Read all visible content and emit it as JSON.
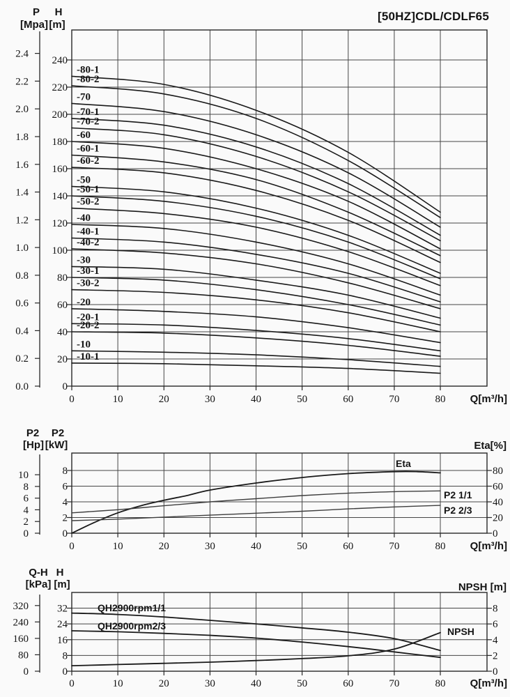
{
  "title": "[50HZ]CDL/CDLF65",
  "colors": {
    "curve": "#191919",
    "grid": "#454545",
    "frame": "#262626",
    "power_curve": "#3d3d3d"
  },
  "chart_data": [
    {
      "type": "line",
      "name": "Q-H stage performance curves",
      "axes": {
        "left_outer": {
          "title": "P",
          "unit": "[Mpa]",
          "ticks": [
            "2.4",
            "2.2",
            "2.0",
            "1.8",
            "1.6",
            "1.4",
            "1.2",
            "1.0",
            "0.8",
            "0.6",
            "0.4",
            "0.2",
            "0.0"
          ]
        },
        "left_inner": {
          "title": "H",
          "unit": "[m]",
          "ticks": [
            240,
            220,
            200,
            180,
            160,
            140,
            120,
            100,
            80,
            60,
            40,
            20,
            0
          ]
        },
        "x": {
          "label": "Q[m³/h]",
          "ticks": [
            0,
            10,
            20,
            30,
            40,
            50,
            60,
            70,
            80
          ],
          "max": 90
        }
      },
      "x_values": [
        0,
        20,
        40,
        60,
        80
      ],
      "series": [
        {
          "label": "-80-1",
          "values": [
            228,
            222,
            203,
            172,
            128
          ]
        },
        {
          "label": "-80-2",
          "values": [
            221,
            215,
            197,
            166,
            124
          ]
        },
        {
          "label": "-70",
          "values": [
            208,
            202,
            185,
            157,
            117
          ]
        },
        {
          "label": "-70-1",
          "values": [
            197,
            192,
            176,
            149,
            111
          ]
        },
        {
          "label": "-70-2",
          "values": [
            190,
            185,
            169,
            143,
            107
          ]
        },
        {
          "label": "-60",
          "values": [
            180,
            175,
            160,
            136,
            101
          ]
        },
        {
          "label": "-60-1",
          "values": [
            170,
            165,
            152,
            128,
            96
          ]
        },
        {
          "label": "-60-2",
          "values": [
            161,
            157,
            144,
            122,
            91
          ]
        },
        {
          "label": "-50",
          "values": [
            147,
            143,
            131,
            111,
            83
          ]
        },
        {
          "label": "-50-1",
          "values": [
            140,
            136,
            125,
            106,
            79
          ]
        },
        {
          "label": "-50-2",
          "values": [
            131,
            127,
            117,
            99,
            74
          ]
        },
        {
          "label": "-40",
          "values": [
            119,
            116,
            106,
            90,
            67
          ]
        },
        {
          "label": "-40-1",
          "values": [
            109,
            106,
            97,
            83,
            62
          ]
        },
        {
          "label": "-40-2",
          "values": [
            101,
            98,
            90,
            76,
            57
          ]
        },
        {
          "label": "-30",
          "values": [
            88,
            86,
            78,
            67,
            50
          ]
        },
        {
          "label": "-30-1",
          "values": [
            80,
            78,
            71,
            60,
            45
          ]
        },
        {
          "label": "-30-2",
          "values": [
            71,
            69,
            63.5,
            54,
            40
          ]
        },
        {
          "label": "-20",
          "values": [
            57,
            55,
            51,
            43,
            32
          ]
        },
        {
          "label": "-20-1",
          "values": [
            46,
            45,
            41,
            35,
            26
          ]
        },
        {
          "label": "-20-2",
          "values": [
            40,
            39,
            35.5,
            30,
            22
          ]
        },
        {
          "label": "-10",
          "values": [
            26,
            25,
            23,
            19.5,
            14.5
          ]
        },
        {
          "label": "-10-1",
          "values": [
            17,
            16.5,
            15,
            13,
            9.5
          ]
        }
      ]
    },
    {
      "type": "line",
      "name": "shaft power and efficiency curves",
      "axes": {
        "left_outer": {
          "title": "P2",
          "unit": "[Hp]",
          "ticks": [
            10,
            8,
            6,
            4,
            2,
            0
          ]
        },
        "left_inner": {
          "title": "P2",
          "unit": "[kW]",
          "ticks": [
            8,
            6,
            4,
            2,
            0
          ]
        },
        "right": {
          "label": "Eta[%]",
          "ticks": [
            80,
            60,
            40,
            20,
            0
          ]
        },
        "x": {
          "label": "Q[m³/h]",
          "ticks": [
            0,
            10,
            20,
            30,
            40,
            50,
            60,
            70,
            80
          ],
          "max": 90
        }
      },
      "series": [
        {
          "label": "Eta",
          "unit": "%",
          "x": [
            0,
            5,
            10,
            15,
            20,
            25,
            30,
            40,
            50,
            60,
            70,
            75,
            80
          ],
          "values": [
            0,
            14,
            26,
            35,
            42,
            48,
            55,
            64,
            71,
            76,
            78.5,
            78.5,
            77
          ]
        },
        {
          "label": "P2 1/1",
          "unit": "kW",
          "x": [
            0,
            10,
            20,
            30,
            40,
            50,
            60,
            70,
            80
          ],
          "values": [
            2.6,
            3.0,
            3.5,
            4.0,
            4.4,
            4.8,
            5.1,
            5.3,
            5.4
          ]
        },
        {
          "label": "P2 2/3",
          "unit": "kW",
          "x": [
            0,
            10,
            20,
            30,
            40,
            50,
            60,
            70,
            80
          ],
          "values": [
            1.6,
            1.8,
            2.05,
            2.3,
            2.55,
            2.8,
            3.1,
            3.35,
            3.55
          ]
        }
      ]
    },
    {
      "type": "line",
      "name": "QH at 2900rpm and NPSH curves",
      "axes": {
        "left_outer": {
          "title": "Q-H",
          "unit": "[kPa]",
          "ticks": [
            320,
            240,
            160,
            80,
            0
          ]
        },
        "left_inner": {
          "title": "H",
          "unit": "[m]",
          "ticks": [
            32,
            24,
            16,
            8,
            0
          ]
        },
        "right": {
          "label": "NPSH [m]",
          "ticks": [
            8,
            6,
            4,
            2,
            0
          ]
        },
        "x": {
          "label": "Q[m³/h]",
          "ticks": [
            0,
            10,
            20,
            30,
            40,
            50,
            60,
            70,
            80
          ],
          "max": 90
        }
      },
      "series": [
        {
          "label": "QH2900rpm1/1",
          "unit": "m",
          "x": [
            0,
            10,
            20,
            30,
            40,
            50,
            60,
            70,
            80
          ],
          "values": [
            29.5,
            28.8,
            27.5,
            25.8,
            24,
            22,
            19.8,
            16.5,
            10.5
          ]
        },
        {
          "label": "QH2900rpm2/3",
          "unit": "m",
          "x": [
            0,
            10,
            20,
            30,
            40,
            50,
            60,
            70,
            80
          ],
          "values": [
            20.5,
            20,
            19.2,
            18.2,
            16.8,
            14.8,
            12.5,
            9.8,
            7
          ]
        },
        {
          "label": "NPSH",
          "unit": "m",
          "x": [
            0,
            10,
            20,
            30,
            40,
            50,
            60,
            70,
            80
          ],
          "values": [
            0.7,
            0.85,
            1.0,
            1.15,
            1.35,
            1.6,
            1.95,
            2.8,
            4.9
          ]
        }
      ]
    }
  ]
}
